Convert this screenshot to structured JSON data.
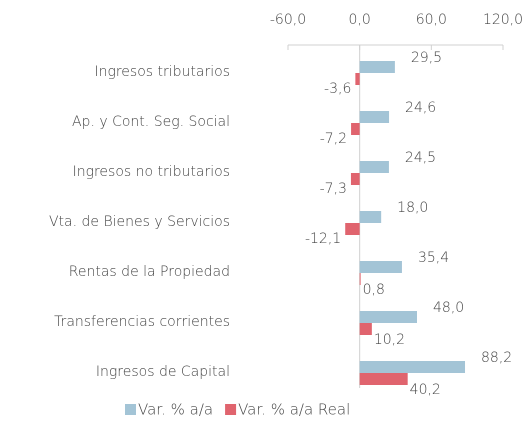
{
  "chart_data": {
    "type": "hbar",
    "categories": [
      "Ingresos tributarios",
      "Ap. y Cont. Seg. Social",
      "Ingresos no tributarios",
      "Vta. de Bienes y Servicios",
      "Rentas de la Propiedad",
      "Transferencias corrientes",
      "Ingresos de Capital"
    ],
    "series": [
      {
        "name": "Var. % a/a",
        "color": "#a3c4d6",
        "values": [
          29.5,
          24.6,
          24.5,
          18.0,
          35.4,
          48.0,
          88.2
        ],
        "value_labels": [
          "29,5",
          "24,6",
          "24,5",
          "18,0",
          "35,4",
          "48,0",
          "88,2"
        ]
      },
      {
        "name": "Var. % a/a Real",
        "color": "#e0646e",
        "values": [
          -3.6,
          -7.2,
          -7.3,
          -12.1,
          0.8,
          10.2,
          40.2
        ],
        "value_labels": [
          "-3,6",
          "-7,2",
          "-7,3",
          "-12,1",
          "0,8",
          "10,2",
          "40,2"
        ]
      }
    ],
    "xlim": [
      -60,
      120
    ],
    "xticks": [
      {
        "value": -60,
        "label": "-60,0"
      },
      {
        "value": 0,
        "label": "0,0"
      },
      {
        "value": 60,
        "label": "60,0"
      },
      {
        "value": 120,
        "label": "120,0"
      }
    ],
    "legend": "bottom"
  }
}
